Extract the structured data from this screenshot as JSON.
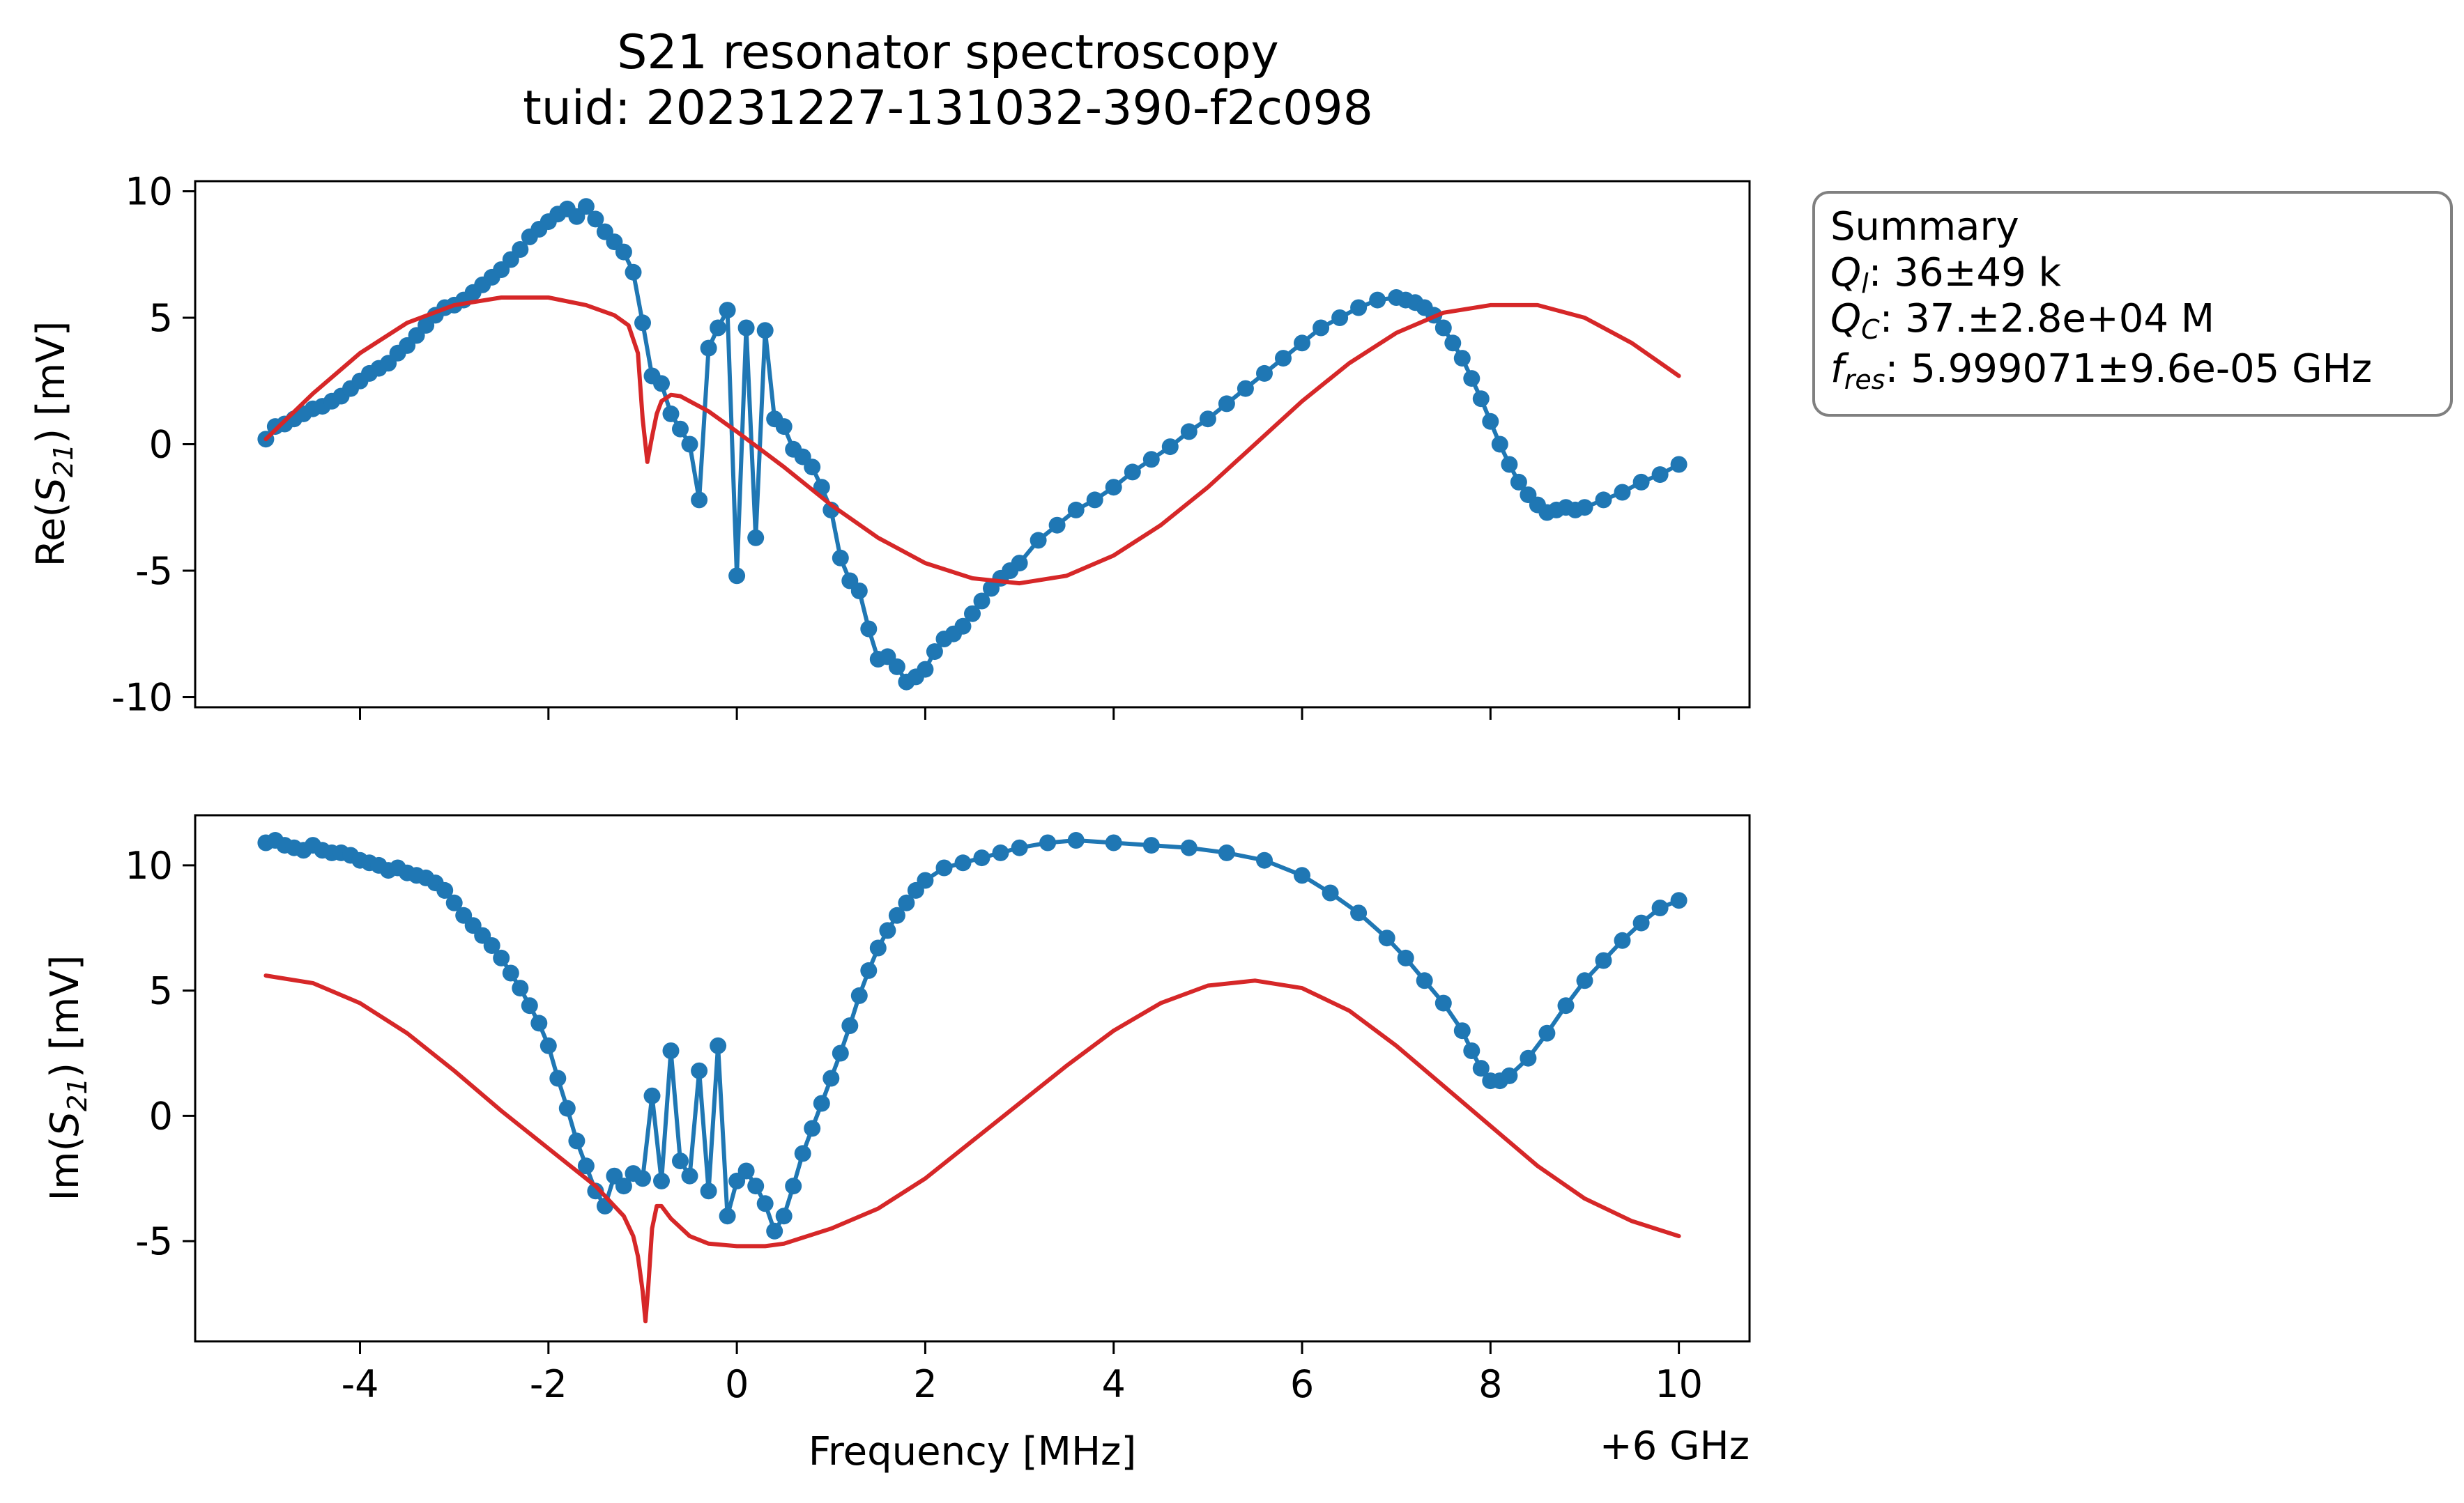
{
  "figure": {
    "title_line1": "S21 resonator spectroscopy",
    "title_line2": "tuid: 20231227-131032-390-f2c098",
    "x_axis_label": "Frequency [MHz]",
    "x_offset_label": "+6 GHz",
    "summary": {
      "heading": "Summary",
      "ql_value": ": 36±49 k",
      "qc_value": ": 37.±2.8e+04 M",
      "fres_value": ": 5.999071±9.6e-05 GHz"
    },
    "colors": {
      "data": "#1f77b4",
      "fit": "#d62728"
    }
  },
  "chart_data": [
    {
      "type": "line",
      "panel": "top",
      "ylabel": "Re(S21) [mV]",
      "xlabel": "",
      "xlim": [
        -5.75,
        10.75
      ],
      "ylim": [
        -10.4,
        10.4
      ],
      "x_ticks": [
        -4,
        -2,
        0,
        2,
        4,
        6,
        8,
        10
      ],
      "x_tick_labels": [
        "",
        "",
        "",
        "",
        "",
        "",
        "",
        ""
      ],
      "y_ticks": [
        10,
        5,
        0,
        -5,
        -10
      ],
      "y_tick_labels": [
        "10",
        "5",
        "0",
        "-5",
        "-10"
      ],
      "series": [
        {
          "style": "line+markers",
          "color": "#1f77b4",
          "x": [
            -5.0,
            -4.9,
            -4.8,
            -4.7,
            -4.6,
            -4.5,
            -4.4,
            -4.3,
            -4.2,
            -4.1,
            -4.0,
            -3.9,
            -3.8,
            -3.7,
            -3.6,
            -3.5,
            -3.4,
            -3.3,
            -3.2,
            -3.1,
            -3.0,
            -2.9,
            -2.8,
            -2.7,
            -2.6,
            -2.5,
            -2.4,
            -2.3,
            -2.2,
            -2.1,
            -2.0,
            -1.9,
            -1.8,
            -1.7,
            -1.6,
            -1.5,
            -1.4,
            -1.3,
            -1.2,
            -1.1,
            -1.0,
            -0.9,
            -0.8,
            -0.7,
            -0.6,
            -0.5,
            -0.4,
            -0.3,
            -0.2,
            -0.1,
            0.0,
            0.1,
            0.2,
            0.3,
            0.4,
            0.5,
            0.6,
            0.7,
            0.8,
            0.9,
            1.0,
            1.1,
            1.2,
            1.3,
            1.4,
            1.5,
            1.6,
            1.7,
            1.8,
            1.9,
            2.0,
            2.1,
            2.2,
            2.3,
            2.4,
            2.5,
            2.6,
            2.7,
            2.8,
            2.9,
            3.0,
            3.2,
            3.4,
            3.6,
            3.8,
            4.0,
            4.2,
            4.4,
            4.6,
            4.8,
            5.0,
            5.2,
            5.4,
            5.6,
            5.8,
            6.0,
            6.2,
            6.4,
            6.6,
            6.8,
            7.0,
            7.1,
            7.2,
            7.3,
            7.4,
            7.5,
            7.6,
            7.7,
            7.8,
            7.9,
            8.0,
            8.1,
            8.2,
            8.3,
            8.4,
            8.5,
            8.6,
            8.7,
            8.8,
            8.9,
            9.0,
            9.2,
            9.4,
            9.6,
            9.8,
            10.0
          ],
          "y": [
            0.2,
            0.7,
            0.8,
            1.0,
            1.2,
            1.4,
            1.5,
            1.7,
            1.9,
            2.2,
            2.5,
            2.8,
            3.0,
            3.2,
            3.6,
            3.9,
            4.3,
            4.7,
            5.1,
            5.4,
            5.5,
            5.7,
            6.0,
            6.3,
            6.6,
            6.9,
            7.3,
            7.7,
            8.2,
            8.5,
            8.8,
            9.1,
            9.3,
            9.0,
            9.4,
            8.9,
            8.4,
            8.0,
            7.6,
            6.8,
            4.8,
            2.7,
            2.4,
            1.2,
            0.6,
            0.0,
            -2.2,
            3.8,
            4.6,
            5.3,
            -5.2,
            4.6,
            -3.7,
            4.5,
            1.0,
            0.7,
            -0.2,
            -0.5,
            -0.9,
            -1.7,
            -2.6,
            -4.5,
            -5.4,
            -5.8,
            -7.3,
            -8.5,
            -8.4,
            -8.8,
            -9.4,
            -9.2,
            -8.9,
            -8.2,
            -7.7,
            -7.5,
            -7.2,
            -6.7,
            -6.2,
            -5.7,
            -5.3,
            -5.0,
            -4.7,
            -3.8,
            -3.2,
            -2.6,
            -2.2,
            -1.7,
            -1.1,
            -0.6,
            -0.1,
            0.5,
            1.0,
            1.6,
            2.2,
            2.8,
            3.4,
            4.0,
            4.6,
            5.0,
            5.4,
            5.7,
            5.8,
            5.7,
            5.6,
            5.4,
            5.1,
            4.6,
            4.0,
            3.4,
            2.6,
            1.8,
            0.9,
            0.0,
            -0.8,
            -1.5,
            -2.0,
            -2.4,
            -2.7,
            -2.6,
            -2.5,
            -2.6,
            -2.5,
            -2.2,
            -1.9,
            -1.5,
            -1.2,
            -0.8
          ]
        },
        {
          "style": "line",
          "color": "#d62728",
          "x": [
            -5.0,
            -4.5,
            -4.0,
            -3.5,
            -3.0,
            -2.5,
            -2.0,
            -1.6,
            -1.3,
            -1.15,
            -1.05,
            -1.0,
            -0.95,
            -0.9,
            -0.85,
            -0.8,
            -0.7,
            -0.6,
            -0.5,
            -0.3,
            0.0,
            0.5,
            1.0,
            1.5,
            2.0,
            2.5,
            3.0,
            3.5,
            4.0,
            4.5,
            5.0,
            5.5,
            6.0,
            6.5,
            7.0,
            7.5,
            8.0,
            8.5,
            9.0,
            9.5,
            10.0
          ],
          "y": [
            0.2,
            2.0,
            3.6,
            4.8,
            5.5,
            5.8,
            5.8,
            5.5,
            5.1,
            4.7,
            3.6,
            1.0,
            -0.7,
            0.3,
            1.2,
            1.7,
            1.95,
            1.9,
            1.7,
            1.3,
            0.5,
            -0.9,
            -2.4,
            -3.7,
            -4.7,
            -5.3,
            -5.5,
            -5.2,
            -4.4,
            -3.2,
            -1.7,
            0.0,
            1.7,
            3.2,
            4.4,
            5.2,
            5.5,
            5.5,
            5.0,
            4.0,
            2.7
          ]
        }
      ]
    },
    {
      "type": "line",
      "panel": "bottom",
      "ylabel": "Im(S21) [mV]",
      "xlabel": "Frequency [MHz]",
      "xlim": [
        -5.75,
        10.75
      ],
      "ylim": [
        -9.0,
        12.0
      ],
      "x_ticks": [
        -4,
        -2,
        0,
        2,
        4,
        6,
        8,
        10
      ],
      "x_tick_labels": [
        "-4",
        "-2",
        "0",
        "2",
        "4",
        "6",
        "8",
        "10"
      ],
      "y_ticks": [
        10,
        5,
        0,
        -5
      ],
      "y_tick_labels": [
        "10",
        "5",
        "0",
        "-5"
      ],
      "series": [
        {
          "style": "line+markers",
          "color": "#1f77b4",
          "x": [
            -5.0,
            -4.9,
            -4.8,
            -4.7,
            -4.6,
            -4.5,
            -4.4,
            -4.3,
            -4.2,
            -4.1,
            -4.0,
            -3.9,
            -3.8,
            -3.7,
            -3.6,
            -3.5,
            -3.4,
            -3.3,
            -3.2,
            -3.1,
            -3.0,
            -2.9,
            -2.8,
            -2.7,
            -2.6,
            -2.5,
            -2.4,
            -2.3,
            -2.2,
            -2.1,
            -2.0,
            -1.9,
            -1.8,
            -1.7,
            -1.6,
            -1.5,
            -1.4,
            -1.3,
            -1.2,
            -1.1,
            -1.0,
            -0.9,
            -0.8,
            -0.7,
            -0.6,
            -0.5,
            -0.4,
            -0.3,
            -0.2,
            -0.1,
            0.0,
            0.1,
            0.2,
            0.3,
            0.4,
            0.5,
            0.6,
            0.7,
            0.8,
            0.9,
            1.0,
            1.1,
            1.2,
            1.3,
            1.4,
            1.5,
            1.6,
            1.7,
            1.8,
            1.9,
            2.0,
            2.2,
            2.4,
            2.6,
            2.8,
            3.0,
            3.3,
            3.6,
            4.0,
            4.4,
            4.8,
            5.2,
            5.6,
            6.0,
            6.3,
            6.6,
            6.9,
            7.1,
            7.3,
            7.5,
            7.7,
            7.8,
            7.9,
            8.0,
            8.1,
            8.2,
            8.4,
            8.6,
            8.8,
            9.0,
            9.2,
            9.4,
            9.6,
            9.8,
            10.0
          ],
          "y": [
            10.9,
            11.0,
            10.8,
            10.7,
            10.6,
            10.8,
            10.6,
            10.5,
            10.5,
            10.4,
            10.2,
            10.1,
            10.0,
            9.8,
            9.9,
            9.7,
            9.6,
            9.5,
            9.3,
            9.0,
            8.5,
            8.0,
            7.6,
            7.2,
            6.8,
            6.3,
            5.7,
            5.1,
            4.4,
            3.7,
            2.8,
            1.5,
            0.3,
            -1.0,
            -2.0,
            -3.0,
            -3.6,
            -2.4,
            -2.8,
            -2.3,
            -2.5,
            0.8,
            -2.6,
            2.6,
            -1.8,
            -2.4,
            1.8,
            -3.0,
            2.8,
            -4.0,
            -2.6,
            -2.2,
            -2.8,
            -3.5,
            -4.6,
            -4.0,
            -2.8,
            -1.5,
            -0.5,
            0.5,
            1.5,
            2.5,
            3.6,
            4.8,
            5.8,
            6.7,
            7.4,
            8.0,
            8.5,
            9.0,
            9.4,
            9.9,
            10.1,
            10.3,
            10.5,
            10.7,
            10.9,
            11.0,
            10.9,
            10.8,
            10.7,
            10.5,
            10.2,
            9.6,
            8.9,
            8.1,
            7.1,
            6.3,
            5.4,
            4.5,
            3.4,
            2.6,
            1.9,
            1.4,
            1.4,
            1.6,
            2.3,
            3.3,
            4.4,
            5.4,
            6.2,
            7.0,
            7.7,
            8.3,
            8.6
          ]
        },
        {
          "style": "line",
          "color": "#d62728",
          "x": [
            -5.0,
            -4.5,
            -4.0,
            -3.5,
            -3.0,
            -2.5,
            -2.0,
            -1.5,
            -1.2,
            -1.1,
            -1.05,
            -1.0,
            -0.97,
            -0.94,
            -0.9,
            -0.85,
            -0.8,
            -0.7,
            -0.5,
            -0.3,
            0.0,
            0.3,
            0.5,
            1.0,
            1.5,
            2.0,
            2.5,
            3.0,
            3.5,
            4.0,
            4.5,
            5.0,
            5.5,
            6.0,
            6.5,
            7.0,
            7.5,
            8.0,
            8.5,
            9.0,
            9.5,
            10.0
          ],
          "y": [
            5.6,
            5.3,
            4.5,
            3.3,
            1.8,
            0.2,
            -1.3,
            -2.8,
            -4.0,
            -4.8,
            -5.6,
            -7.0,
            -8.2,
            -6.8,
            -4.5,
            -3.6,
            -3.6,
            -4.1,
            -4.8,
            -5.1,
            -5.2,
            -5.2,
            -5.1,
            -4.5,
            -3.7,
            -2.5,
            -1.0,
            0.5,
            2.0,
            3.4,
            4.5,
            5.2,
            5.4,
            5.1,
            4.2,
            2.8,
            1.2,
            -0.4,
            -2.0,
            -3.3,
            -4.2,
            -4.8
          ]
        }
      ]
    }
  ]
}
